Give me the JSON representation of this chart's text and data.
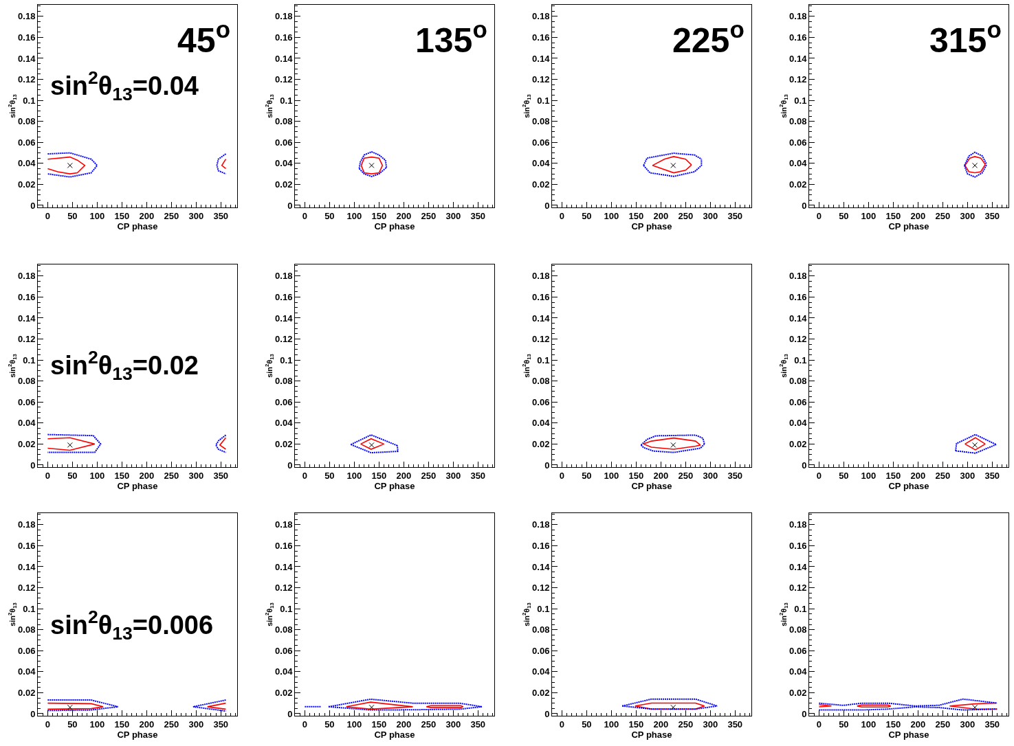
{
  "chart_data": [
    {
      "type": "line",
      "xlabel": "CP phase",
      "ylabel": "sin$^{2}$θ$_{13}$",
      "xlim": [
        -20,
        383
      ],
      "ylim": [
        -0.002,
        0.191
      ],
      "xticks": [
        0,
        50,
        100,
        150,
        200,
        250,
        300,
        350
      ],
      "yticks": [
        0,
        0.02,
        0.04,
        0.06,
        0.08,
        0.1,
        0.12,
        0.14,
        0.16,
        0.18
      ],
      "annotations": [
        "45$^{o}$",
        "sin$^{2}$θ$_{13}$=0.04"
      ],
      "series": [
        {
          "color": "#ff0000",
          "line_style": "solid",
          "x": [
            0,
            45,
            60,
            75,
            60,
            45,
            20,
            0
          ],
          "values": [
            0.044,
            0.046,
            0.043,
            0.038,
            0.031,
            0.03,
            0.032,
            0.035
          ]
        },
        {
          "color": "#0000ff",
          "line_style": "dotted",
          "x": [
            0,
            45,
            88,
            100,
            88,
            45,
            0
          ],
          "values": [
            0.049,
            0.05,
            0.044,
            0.038,
            0.031,
            0.027,
            0.03
          ]
        },
        {
          "color": "#ff0000",
          "line_style": "solid",
          "x": [
            360,
            352,
            360
          ],
          "values": [
            0.044,
            0.038,
            0.035
          ]
        },
        {
          "color": "#0000ff",
          "line_style": "dotted",
          "x": [
            360,
            345,
            342,
            345,
            360
          ],
          "values": [
            0.049,
            0.044,
            0.038,
            0.033,
            0.03
          ]
        },
        {
          "type": "scatter",
          "color": "#000000",
          "marker": "cross",
          "x": [
            45
          ],
          "values": [
            0.038
          ]
        }
      ]
    },
    {
      "type": "line",
      "xlabel": "CP phase",
      "ylabel": "sin$^{2}$θ$_{13}$",
      "xlim": [
        -20,
        383
      ],
      "ylim": [
        -0.002,
        0.191
      ],
      "xticks": [
        0,
        50,
        100,
        150,
        200,
        250,
        300,
        350
      ],
      "yticks": [
        0,
        0.02,
        0.04,
        0.06,
        0.08,
        0.1,
        0.12,
        0.14,
        0.16,
        0.18
      ],
      "annotations": [
        "135$^{o}$"
      ],
      "series": [
        {
          "color": "#ff0000",
          "line_style": "solid",
          "x": [
            114,
            120,
            135,
            150,
            157
          ],
          "values": [
            0.038,
            0.045,
            0.046,
            0.045,
            0.038
          ]
        },
        {
          "color": "#ff0000",
          "line_style": "solid",
          "x": [
            114,
            120,
            135,
            150,
            157
          ],
          "values": [
            0.038,
            0.031,
            0.03,
            0.031,
            0.038
          ]
        },
        {
          "color": "#0000ff",
          "line_style": "dotted",
          "x": [
            110,
            112,
            120,
            135,
            150,
            163,
            165
          ],
          "values": [
            0.035,
            0.041,
            0.048,
            0.051,
            0.048,
            0.043,
            0.036
          ]
        },
        {
          "color": "#0000ff",
          "line_style": "dotted",
          "x": [
            110,
            120,
            135,
            150,
            165
          ],
          "values": [
            0.035,
            0.03,
            0.0275,
            0.03,
            0.036
          ]
        },
        {
          "type": "scatter",
          "color": "#000000",
          "marker": "cross",
          "x": [
            135
          ],
          "values": [
            0.038
          ]
        }
      ]
    },
    {
      "type": "line",
      "xlabel": "CP phase",
      "ylabel": "sin$^{2}$θ$_{13}$",
      "xlim": [
        -20,
        383
      ],
      "ylim": [
        -0.002,
        0.191
      ],
      "xticks": [
        0,
        50,
        100,
        150,
        200,
        250,
        300,
        350
      ],
      "yticks": [
        0,
        0.02,
        0.04,
        0.06,
        0.08,
        0.1,
        0.12,
        0.14,
        0.16,
        0.18
      ],
      "annotations": [
        "225$^{o}$"
      ],
      "series": [
        {
          "color": "#ff0000",
          "line_style": "solid",
          "x": [
            183,
            207,
            226,
            250,
            262
          ],
          "values": [
            0.038,
            0.044,
            0.0465,
            0.044,
            0.0385
          ]
        },
        {
          "color": "#ff0000",
          "line_style": "solid",
          "x": [
            183,
            226,
            250,
            262
          ],
          "values": [
            0.038,
            0.031,
            0.0335,
            0.0385
          ]
        },
        {
          "color": "#0000ff",
          "line_style": "dotted",
          "x": [
            165,
            172,
            226,
            268,
            282
          ],
          "values": [
            0.038,
            0.045,
            0.0497,
            0.048,
            0.044
          ]
        },
        {
          "color": "#0000ff",
          "line_style": "dotted",
          "x": [
            165,
            178,
            226,
            268,
            282,
            282
          ],
          "values": [
            0.038,
            0.031,
            0.0276,
            0.032,
            0.038,
            0.044
          ]
        },
        {
          "type": "scatter",
          "color": "#000000",
          "marker": "cross",
          "x": [
            225
          ],
          "values": [
            0.038
          ]
        }
      ]
    },
    {
      "type": "line",
      "xlabel": "CP phase",
      "ylabel": "sin$^{2}$θ$_{13}$",
      "xlim": [
        -20,
        383
      ],
      "ylim": [
        -0.002,
        0.191
      ],
      "xticks": [
        0,
        50,
        100,
        150,
        200,
        250,
        300,
        350
      ],
      "yticks": [
        0,
        0.02,
        0.04,
        0.06,
        0.08,
        0.1,
        0.12,
        0.14,
        0.16,
        0.18
      ],
      "annotations": [
        "315$^{o}$"
      ],
      "series": [
        {
          "color": "#ff0000",
          "line_style": "solid",
          "x": [
            295,
            305,
            315,
            327,
            336
          ],
          "values": [
            0.038,
            0.045,
            0.0465,
            0.045,
            0.039
          ]
        },
        {
          "color": "#ff0000",
          "line_style": "solid",
          "x": [
            295,
            303,
            315,
            327,
            336
          ],
          "values": [
            0.038,
            0.032,
            0.031,
            0.032,
            0.039
          ]
        },
        {
          "color": "#0000ff",
          "line_style": "dotted",
          "x": [
            294,
            303,
            315,
            330,
            339
          ],
          "values": [
            0.038,
            0.047,
            0.0505,
            0.047,
            0.039
          ]
        },
        {
          "color": "#0000ff",
          "line_style": "dotted",
          "x": [
            294,
            300,
            315,
            330,
            339
          ],
          "values": [
            0.038,
            0.03,
            0.027,
            0.031,
            0.039
          ]
        },
        {
          "type": "scatter",
          "color": "#000000",
          "marker": "cross",
          "x": [
            315
          ],
          "values": [
            0.038
          ]
        }
      ]
    },
    {
      "type": "line",
      "xlabel": "CP phase",
      "ylabel": "sin$^{2}$θ$_{13}$",
      "xlim": [
        -20,
        383
      ],
      "ylim": [
        -0.002,
        0.191
      ],
      "xticks": [
        0,
        50,
        100,
        150,
        200,
        250,
        300,
        350
      ],
      "yticks": [
        0,
        0.02,
        0.04,
        0.06,
        0.08,
        0.1,
        0.12,
        0.14,
        0.16,
        0.18
      ],
      "annotations": [
        "sin$^{2}$θ$_{13}$=0.02"
      ],
      "series": [
        {
          "color": "#ff0000",
          "line_style": "solid",
          "x": [
            0,
            45,
            95,
            45,
            0
          ],
          "values": [
            0.025,
            0.026,
            0.02,
            0.014,
            0.016
          ]
        },
        {
          "color": "#0000ff",
          "line_style": "dotted",
          "x": [
            0,
            92,
            107,
            95,
            45,
            0
          ],
          "values": [
            0.029,
            0.028,
            0.02,
            0.012,
            0.012,
            0.012
          ]
        },
        {
          "color": "#ff0000",
          "line_style": "solid",
          "x": [
            360,
            348,
            360
          ],
          "values": [
            0.026,
            0.019,
            0.015
          ]
        },
        {
          "color": "#0000ff",
          "line_style": "dotted",
          "x": [
            360,
            345,
            340,
            345,
            360
          ],
          "values": [
            0.0285,
            0.023,
            0.019,
            0.015,
            0.012
          ]
        },
        {
          "type": "scatter",
          "color": "#000000",
          "marker": "cross",
          "x": [
            45
          ],
          "values": [
            0.019
          ]
        }
      ]
    },
    {
      "type": "line",
      "xlabel": "CP phase",
      "ylabel": "sin$^{2}$θ$_{13}$",
      "xlim": [
        -20,
        383
      ],
      "ylim": [
        -0.002,
        0.191
      ],
      "xticks": [
        0,
        50,
        100,
        150,
        200,
        250,
        300,
        350
      ],
      "yticks": [
        0,
        0.02,
        0.04,
        0.06,
        0.08,
        0.1,
        0.12,
        0.14,
        0.16,
        0.18
      ],
      "series": [
        {
          "color": "#ff0000",
          "line_style": "solid",
          "x": [
            113,
            134,
            160
          ],
          "values": [
            0.02,
            0.025,
            0.02
          ]
        },
        {
          "color": "#ff0000",
          "line_style": "solid",
          "x": [
            113,
            134,
            160
          ],
          "values": [
            0.02,
            0.015,
            0.02
          ]
        },
        {
          "color": "#0000ff",
          "line_style": "dotted",
          "x": [
            93,
            134,
            187
          ],
          "values": [
            0.0195,
            0.0287,
            0.0185
          ]
        },
        {
          "color": "#0000ff",
          "line_style": "dotted",
          "x": [
            93,
            134,
            188,
            187
          ],
          "values": [
            0.0195,
            0.0117,
            0.013,
            0.0185
          ]
        },
        {
          "type": "scatter",
          "color": "#000000",
          "marker": "cross",
          "x": [
            135
          ],
          "values": [
            0.019
          ]
        }
      ]
    },
    {
      "type": "line",
      "xlabel": "CP phase",
      "ylabel": "sin$^{2}$θ$_{13}$",
      "xlim": [
        -20,
        383
      ],
      "ylim": [
        -0.002,
        0.191
      ],
      "xticks": [
        0,
        50,
        100,
        150,
        200,
        250,
        300,
        350
      ],
      "yticks": [
        0,
        0.02,
        0.04,
        0.06,
        0.08,
        0.1,
        0.12,
        0.14,
        0.16,
        0.18
      ],
      "series": [
        {
          "color": "#ff0000",
          "line_style": "solid",
          "x": [
            165,
            181,
            226,
            270,
            280
          ],
          "values": [
            0.02,
            0.0228,
            0.0257,
            0.0228,
            0.019
          ]
        },
        {
          "color": "#ff0000",
          "line_style": "solid",
          "x": [
            165,
            181,
            226,
            270,
            280
          ],
          "values": [
            0.02,
            0.017,
            0.015,
            0.018,
            0.019
          ]
        },
        {
          "color": "#0000ff",
          "line_style": "dotted",
          "x": [
            160,
            172,
            190,
            270,
            285,
            288
          ],
          "values": [
            0.019,
            0.0244,
            0.0278,
            0.0285,
            0.0255,
            0.02
          ]
        },
        {
          "color": "#0000ff",
          "line_style": "dotted",
          "x": [
            160,
            165,
            185,
            226,
            280,
            288
          ],
          "values": [
            0.019,
            0.0166,
            0.0133,
            0.012,
            0.016,
            0.02
          ]
        },
        {
          "type": "scatter",
          "color": "#000000",
          "marker": "cross",
          "x": [
            225
          ],
          "values": [
            0.019
          ]
        }
      ]
    },
    {
      "type": "line",
      "xlabel": "CP phase",
      "ylabel": "sin$^{2}$θ$_{13}$",
      "xlim": [
        -20,
        383
      ],
      "ylim": [
        -0.002,
        0.191
      ],
      "xticks": [
        0,
        50,
        100,
        150,
        200,
        250,
        300,
        350
      ],
      "yticks": [
        0,
        0.02,
        0.04,
        0.06,
        0.08,
        0.1,
        0.12,
        0.14,
        0.16,
        0.18
      ],
      "series": [
        {
          "color": "#ff0000",
          "line_style": "solid",
          "x": [
            295,
            316,
            336
          ],
          "values": [
            0.02,
            0.026,
            0.02
          ]
        },
        {
          "color": "#ff0000",
          "line_style": "solid",
          "x": [
            295,
            316,
            336
          ],
          "values": [
            0.02,
            0.0144,
            0.02
          ]
        },
        {
          "color": "#0000ff",
          "line_style": "dotted",
          "x": [
            276,
            278,
            316,
            358
          ],
          "values": [
            0.0135,
            0.0205,
            0.029,
            0.0195
          ]
        },
        {
          "color": "#0000ff",
          "line_style": "dotted",
          "x": [
            276,
            316,
            358
          ],
          "values": [
            0.0135,
            0.0113,
            0.0195
          ]
        },
        {
          "type": "scatter",
          "color": "#000000",
          "marker": "cross",
          "x": [
            315
          ],
          "values": [
            0.019
          ]
        }
      ]
    },
    {
      "type": "line",
      "xlabel": "CP phase",
      "ylabel": "sin$^{2}$θ$_{13}$",
      "xlim": [
        -20,
        383
      ],
      "ylim": [
        -0.002,
        0.191
      ],
      "xticks": [
        0,
        50,
        100,
        150,
        200,
        250,
        300,
        350
      ],
      "yticks": [
        0,
        0.02,
        0.04,
        0.06,
        0.08,
        0.1,
        0.12,
        0.14,
        0.16,
        0.18
      ],
      "annotations": [
        "sin$^{2}$θ$_{13}$=0.006"
      ],
      "series": [
        {
          "color": "#ff0000",
          "line_style": "solid",
          "x": [
            0,
            88,
            112,
            88,
            0
          ],
          "values": [
            0.01,
            0.0095,
            0.0066,
            0.0048,
            0.0043
          ]
        },
        {
          "color": "#0000ff",
          "line_style": "dotted",
          "x": [
            0,
            88,
            142,
            88,
            0
          ],
          "values": [
            0.013,
            0.013,
            0.0066,
            0.0035,
            0.003
          ]
        },
        {
          "color": "#ff0000",
          "line_style": "solid",
          "x": [
            360,
            323,
            360
          ],
          "values": [
            0.01,
            0.0066,
            0.0043
          ]
        },
        {
          "color": "#0000ff",
          "line_style": "dotted",
          "x": [
            360,
            294,
            360
          ],
          "values": [
            0.013,
            0.0066,
            0.0025
          ]
        },
        {
          "type": "scatter",
          "color": "#000000",
          "marker": "cross",
          "x": [
            45
          ],
          "values": [
            0.006
          ]
        }
      ]
    },
    {
      "type": "line",
      "xlabel": "CP phase",
      "ylabel": "sin$^{2}$θ$_{13}$",
      "xlim": [
        -20,
        383
      ],
      "ylim": [
        -0.002,
        0.191
      ],
      "xticks": [
        0,
        50,
        100,
        150,
        200,
        250,
        300,
        350
      ],
      "yticks": [
        0,
        0.02,
        0.04,
        0.06,
        0.08,
        0.1,
        0.12,
        0.14,
        0.16,
        0.18
      ],
      "series": [
        {
          "color": "#0000ff",
          "line_style": "dotted",
          "x": [
            0,
            33
          ],
          "values": [
            0.0066,
            0.0066
          ]
        },
        {
          "color": "#0000ff",
          "line_style": "dotted",
          "x": [
            48,
            133,
            218,
            249,
            313,
            358
          ],
          "values": [
            0.0066,
            0.0138,
            0.01,
            0.01,
            0.01,
            0.0066
          ]
        },
        {
          "color": "#0000ff",
          "line_style": "dotted",
          "x": [
            48,
            133,
            218,
            313,
            358
          ],
          "values": [
            0.0066,
            0.0035,
            0.0037,
            0.0043,
            0.0066
          ]
        },
        {
          "color": "#ff0000",
          "line_style": "solid",
          "x": [
            84,
            133,
            218
          ],
          "values": [
            0.0066,
            0.011,
            0.0066
          ]
        },
        {
          "color": "#ff0000",
          "line_style": "solid",
          "x": [
            84,
            133,
            218
          ],
          "values": [
            0.0066,
            0.0043,
            0.0066
          ]
        },
        {
          "color": "#ff0000",
          "line_style": "solid",
          "x": [
            246,
            255,
            315,
            320
          ],
          "values": [
            0.0066,
            0.0076,
            0.0076,
            0.0066
          ]
        },
        {
          "color": "#ff0000",
          "line_style": "solid",
          "x": [
            246,
            255,
            315,
            320
          ],
          "values": [
            0.0066,
            0.0058,
            0.0058,
            0.0066
          ]
        },
        {
          "type": "scatter",
          "color": "#000000",
          "marker": "cross",
          "x": [
            135
          ],
          "values": [
            0.006
          ]
        }
      ]
    },
    {
      "type": "line",
      "xlabel": "CP phase",
      "ylabel": "sin$^{2}$θ$_{13}$",
      "xlim": [
        -20,
        383
      ],
      "ylim": [
        -0.002,
        0.191
      ],
      "xticks": [
        0,
        50,
        100,
        150,
        200,
        250,
        300,
        350
      ],
      "yticks": [
        0,
        0.02,
        0.04,
        0.06,
        0.08,
        0.1,
        0.12,
        0.14,
        0.16,
        0.18
      ],
      "series": [
        {
          "color": "#ff0000",
          "line_style": "solid",
          "x": [
            148,
            181,
            270,
            288
          ],
          "values": [
            0.0073,
            0.0101,
            0.0101,
            0.0073
          ]
        },
        {
          "color": "#ff0000",
          "line_style": "solid",
          "x": [
            148,
            181,
            270,
            288
          ],
          "values": [
            0.0073,
            0.0044,
            0.0044,
            0.0073
          ]
        },
        {
          "color": "#0000ff",
          "line_style": "dotted",
          "x": [
            122,
            181,
            270,
            314
          ],
          "values": [
            0.0073,
            0.0139,
            0.0139,
            0.0073
          ]
        },
        {
          "color": "#0000ff",
          "line_style": "dotted",
          "x": [
            122,
            181,
            270,
            314
          ],
          "values": [
            0.0073,
            0.0044,
            0.0044,
            0.0073
          ]
        },
        {
          "type": "scatter",
          "color": "#000000",
          "marker": "cross",
          "x": [
            225
          ],
          "values": [
            0.006
          ]
        }
      ]
    },
    {
      "type": "line",
      "xlabel": "CP phase",
      "ylabel": "sin$^{2}$θ$_{13}$",
      "xlim": [
        -20,
        383
      ],
      "ylim": [
        -0.002,
        0.191
      ],
      "xticks": [
        0,
        50,
        100,
        150,
        200,
        250,
        300,
        350
      ],
      "yticks": [
        0,
        0.02,
        0.04,
        0.06,
        0.08,
        0.1,
        0.12,
        0.14,
        0.16,
        0.18
      ],
      "series": [
        {
          "color": "#ff0000",
          "line_style": "solid",
          "x": [
            0,
            25,
            0
          ],
          "values": [
            0.0086,
            0.0073,
            0.0065
          ]
        },
        {
          "color": "#ff0000",
          "line_style": "solid",
          "x": [
            77,
            86,
            139,
            145
          ],
          "values": [
            0.0073,
            0.0082,
            0.0082,
            0.0073
          ]
        },
        {
          "color": "#ff0000",
          "line_style": "solid",
          "x": [
            77,
            86,
            139,
            145
          ],
          "values": [
            0.0073,
            0.0063,
            0.0063,
            0.0073
          ]
        },
        {
          "color": "#ff0000",
          "line_style": "solid",
          "x": [
            359,
            316,
            264,
            316,
            359
          ],
          "values": [
            0.0101,
            0.0094,
            0.0073,
            0.0044,
            0.0044
          ]
        },
        {
          "color": "#0000ff",
          "line_style": "dotted",
          "x": [
            0,
            49,
            86,
            140,
            194,
            243,
            291,
            360
          ],
          "values": [
            0.01,
            0.0079,
            0.01,
            0.01,
            0.0073,
            0.008,
            0.0139,
            0.0101
          ]
        },
        {
          "color": "#0000ff",
          "line_style": "dotted",
          "x": [
            0,
            86,
            140,
            194,
            243,
            291,
            360
          ],
          "values": [
            0.0035,
            0.0035,
            0.0044,
            0.0065,
            0.0058,
            0.0035,
            0.0044
          ]
        },
        {
          "type": "scatter",
          "color": "#000000",
          "marker": "cross",
          "x": [
            315
          ],
          "values": [
            0.006
          ]
        }
      ]
    }
  ]
}
